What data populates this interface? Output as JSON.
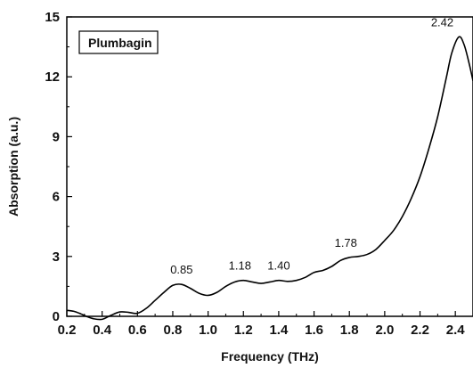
{
  "chart_data": {
    "type": "line",
    "title": "",
    "xlabel": "Frequency (THz)",
    "ylabel": "Absorption (a.u.)",
    "xlim": [
      0.2,
      2.5
    ],
    "ylim": [
      0,
      15
    ],
    "grid": false,
    "legend_position": "top-left",
    "x_ticks": [
      "0.2",
      "0.4",
      "0.6",
      "0.8",
      "1.0",
      "1.2",
      "1.4",
      "1.6",
      "1.8",
      "2.0",
      "2.2",
      "2.4"
    ],
    "y_ticks": [
      "0",
      "3",
      "6",
      "9",
      "12",
      "15"
    ],
    "series": [
      {
        "name": "Plumbagin",
        "color": "#000000",
        "x": [
          0.2,
          0.24,
          0.28,
          0.31,
          0.35,
          0.4,
          0.45,
          0.5,
          0.55,
          0.6,
          0.65,
          0.7,
          0.75,
          0.8,
          0.85,
          0.9,
          0.95,
          1.0,
          1.05,
          1.1,
          1.15,
          1.2,
          1.25,
          1.3,
          1.35,
          1.4,
          1.45,
          1.5,
          1.55,
          1.6,
          1.65,
          1.7,
          1.75,
          1.8,
          1.85,
          1.9,
          1.95,
          2.0,
          2.05,
          2.1,
          2.15,
          2.2,
          2.25,
          2.3,
          2.35,
          2.38,
          2.42,
          2.45,
          2.48,
          2.5
        ],
        "y": [
          0.3,
          0.25,
          0.12,
          0.0,
          -0.12,
          -0.15,
          0.05,
          0.22,
          0.2,
          0.15,
          0.4,
          0.8,
          1.2,
          1.55,
          1.6,
          1.4,
          1.15,
          1.05,
          1.2,
          1.5,
          1.72,
          1.8,
          1.72,
          1.65,
          1.72,
          1.8,
          1.75,
          1.8,
          1.95,
          2.2,
          2.3,
          2.5,
          2.8,
          2.95,
          3.0,
          3.1,
          3.35,
          3.8,
          4.3,
          5.0,
          5.9,
          7.0,
          8.4,
          10.0,
          12.0,
          13.2,
          14.0,
          13.6,
          12.6,
          11.8
        ]
      }
    ],
    "annotations": [
      {
        "text": "0.85",
        "x": 0.85,
        "y": 1.6
      },
      {
        "text": "1.18",
        "x": 1.18,
        "y": 1.8
      },
      {
        "text": "1.40",
        "x": 1.4,
        "y": 1.8
      },
      {
        "text": "1.78",
        "x": 1.78,
        "y": 2.95
      },
      {
        "text": "2.42",
        "x": 2.42,
        "y": 14.0
      }
    ]
  }
}
